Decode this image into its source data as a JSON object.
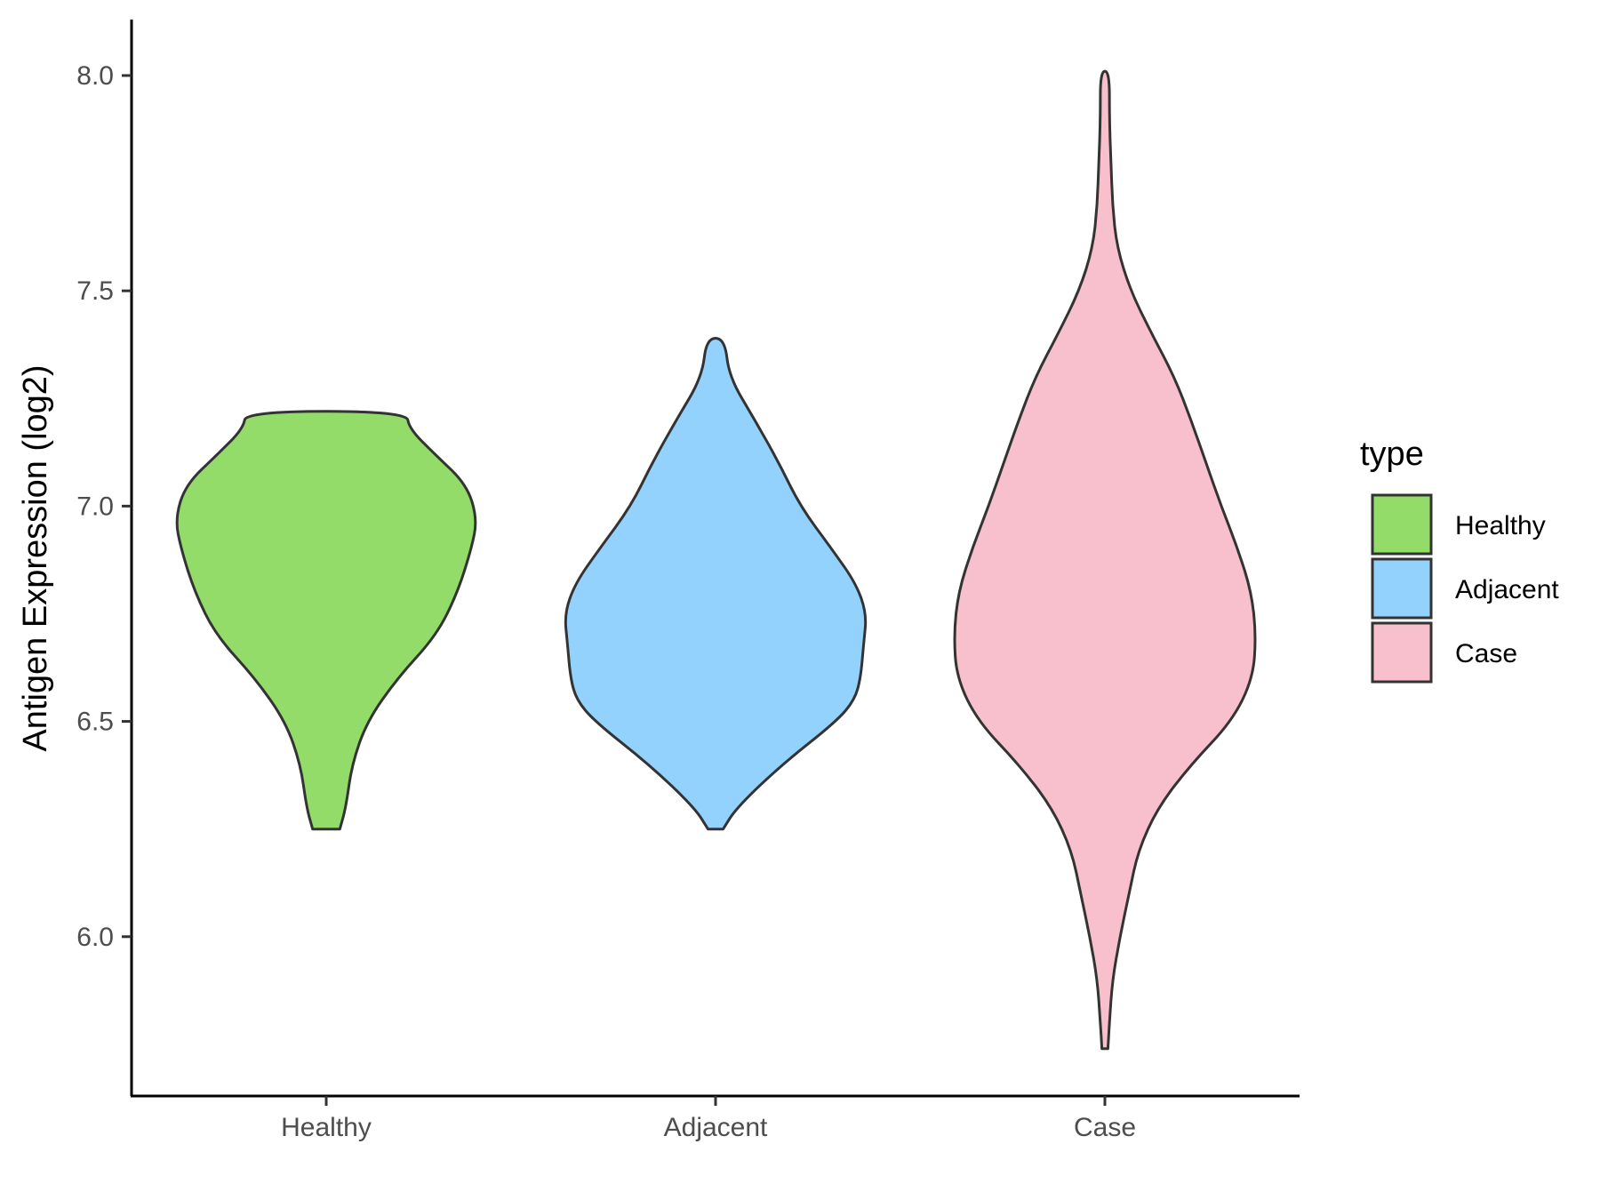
{
  "chart_data": {
    "type": "violin",
    "title": "",
    "xlabel": "",
    "ylabel": "Antigen Expression (log2)",
    "ylim": [
      5.63,
      8.13
    ],
    "y_ticks": [
      "6.0",
      "6.5",
      "7.0",
      "7.5",
      "8.0"
    ],
    "categories": [
      "Healthy",
      "Adjacent",
      "Case"
    ],
    "legend": {
      "title": "type",
      "position": "right",
      "entries": [
        "Healthy",
        "Adjacent",
        "Case"
      ]
    },
    "colors": {
      "Healthy": "#93dc6a",
      "Adjacent": "#93d2fd",
      "Case": "#f7c0cc",
      "outline": "#333333"
    },
    "series": [
      {
        "category": "Healthy",
        "min": 6.25,
        "max": 7.22,
        "density_profile": [
          [
            6.25,
            0.09
          ],
          [
            6.3,
            0.13
          ],
          [
            6.4,
            0.17
          ],
          [
            6.5,
            0.27
          ],
          [
            6.6,
            0.47
          ],
          [
            6.7,
            0.73
          ],
          [
            6.8,
            0.87
          ],
          [
            6.9,
            0.96
          ],
          [
            6.97,
            1.0
          ],
          [
            7.05,
            0.93
          ],
          [
            7.12,
            0.72
          ],
          [
            7.18,
            0.55
          ],
          [
            7.22,
            0.53
          ]
        ]
      },
      {
        "category": "Adjacent",
        "min": 6.25,
        "max": 7.39,
        "density_profile": [
          [
            6.25,
            0.05
          ],
          [
            6.3,
            0.14
          ],
          [
            6.4,
            0.44
          ],
          [
            6.5,
            0.8
          ],
          [
            6.55,
            0.92
          ],
          [
            6.6,
            0.96
          ],
          [
            6.68,
            0.98
          ],
          [
            6.75,
            1.0
          ],
          [
            6.82,
            0.93
          ],
          [
            6.9,
            0.77
          ],
          [
            7.0,
            0.56
          ],
          [
            7.1,
            0.42
          ],
          [
            7.2,
            0.26
          ],
          [
            7.3,
            0.09
          ],
          [
            7.39,
            0.06
          ]
        ]
      },
      {
        "category": "Case",
        "min": 5.74,
        "max": 8.01,
        "density_profile": [
          [
            5.74,
            0.02
          ],
          [
            5.8,
            0.03
          ],
          [
            5.9,
            0.05
          ],
          [
            6.0,
            0.1
          ],
          [
            6.1,
            0.16
          ],
          [
            6.2,
            0.22
          ],
          [
            6.3,
            0.35
          ],
          [
            6.4,
            0.57
          ],
          [
            6.5,
            0.84
          ],
          [
            6.6,
            0.98
          ],
          [
            6.7,
            1.0
          ],
          [
            6.8,
            0.97
          ],
          [
            6.9,
            0.88
          ],
          [
            7.0,
            0.77
          ],
          [
            7.1,
            0.67
          ],
          [
            7.2,
            0.57
          ],
          [
            7.3,
            0.46
          ],
          [
            7.4,
            0.31
          ],
          [
            7.5,
            0.17
          ],
          [
            7.6,
            0.08
          ],
          [
            7.7,
            0.05
          ],
          [
            7.8,
            0.04
          ],
          [
            7.9,
            0.03
          ],
          [
            8.01,
            0.03
          ]
        ]
      }
    ]
  }
}
